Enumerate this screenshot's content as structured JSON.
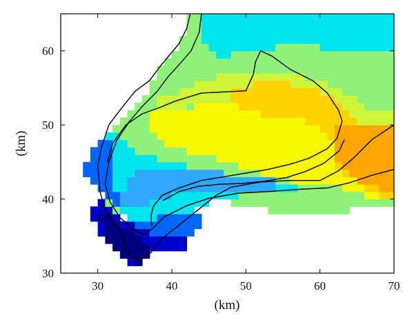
{
  "chart_data": {
    "type": "heatmap",
    "title": "",
    "xlabel": "(km)",
    "ylabel": "(km)",
    "xlim": [
      25,
      70
    ],
    "ylim": [
      30,
      65
    ],
    "xticks": [
      30,
      40,
      50,
      60,
      70
    ],
    "yticks": [
      30,
      40,
      50,
      60
    ],
    "grid": false,
    "colormap": [
      "#00007f",
      "#0000cc",
      "#0066ff",
      "#2fa8ff",
      "#00e5ee",
      "#45f0b8",
      "#8ef27a",
      "#d0f438",
      "#f7f700",
      "#ffd200",
      "#ffa500"
    ],
    "cell_size_km": 1,
    "value_note": "level index into colormap (0 = darkest blue, 10 = orange)",
    "regions": [
      {
        "level": 6,
        "outline": [
          [
            44,
            65
          ],
          [
            70,
            65
          ],
          [
            70,
            39.5
          ],
          [
            64,
            38.5
          ],
          [
            56,
            38
          ],
          [
            48,
            39.5
          ],
          [
            44,
            40
          ],
          [
            41,
            38
          ],
          [
            38,
            37
          ],
          [
            36,
            38.5
          ],
          [
            33,
            38
          ],
          [
            31,
            40
          ],
          [
            30.5,
            45
          ],
          [
            32.5,
            49.5
          ],
          [
            36,
            53
          ],
          [
            38,
            57
          ],
          [
            40.5,
            59.5
          ],
          [
            41.5,
            62
          ],
          [
            42.5,
            65
          ]
        ]
      },
      {
        "level": 4,
        "outline": [
          [
            44,
            65
          ],
          [
            70,
            65
          ],
          [
            70,
            60
          ],
          [
            62,
            60
          ],
          [
            58,
            61
          ],
          [
            54,
            60.5
          ],
          [
            50,
            60
          ],
          [
            46,
            59
          ],
          [
            44,
            62
          ]
        ]
      },
      {
        "level": 4,
        "outline": [
          [
            30,
            45
          ],
          [
            32,
            42
          ],
          [
            33,
            38
          ],
          [
            35,
            37
          ],
          [
            38,
            37
          ],
          [
            42,
            38
          ],
          [
            46,
            40
          ],
          [
            52,
            41
          ],
          [
            56,
            40.5
          ],
          [
            58,
            41
          ],
          [
            56,
            42
          ],
          [
            52,
            42.5
          ],
          [
            48,
            43
          ],
          [
            44,
            44
          ],
          [
            40,
            45
          ],
          [
            36,
            46
          ],
          [
            34,
            48
          ],
          [
            31.5,
            49
          ]
        ]
      },
      {
        "level": 3,
        "outline": [
          [
            33,
            39.5
          ],
          [
            34,
            42
          ],
          [
            36,
            44
          ],
          [
            40,
            44.5
          ],
          [
            45,
            44.5
          ],
          [
            47,
            43.5
          ],
          [
            50,
            43
          ],
          [
            54,
            42.5
          ],
          [
            54,
            41.5
          ],
          [
            50,
            41.5
          ],
          [
            46,
            41
          ],
          [
            42,
            41
          ],
          [
            38,
            40
          ],
          [
            35,
            38.5
          ]
        ]
      },
      {
        "level": 2,
        "outline": [
          [
            28,
            44
          ],
          [
            29.5,
            47
          ],
          [
            31,
            49
          ],
          [
            32,
            47
          ],
          [
            32,
            43
          ],
          [
            33,
            39
          ],
          [
            35,
            36
          ],
          [
            38,
            34
          ],
          [
            41,
            34
          ],
          [
            43,
            35
          ],
          [
            44,
            37
          ],
          [
            44,
            38
          ],
          [
            41,
            38
          ],
          [
            38,
            37.5
          ],
          [
            35,
            37
          ],
          [
            32,
            39
          ],
          [
            30,
            42
          ]
        ]
      },
      {
        "level": 1,
        "outline": [
          [
            29,
            38
          ],
          [
            30.5,
            35
          ],
          [
            32,
            33
          ],
          [
            34,
            31.5
          ],
          [
            36.5,
            31.5
          ],
          [
            38,
            33
          ],
          [
            40,
            33.5
          ],
          [
            42,
            33.5
          ],
          [
            42,
            35
          ],
          [
            40,
            35
          ],
          [
            38,
            35
          ],
          [
            36,
            36
          ],
          [
            34,
            37
          ],
          [
            32,
            38.5
          ],
          [
            30,
            40.5
          ]
        ]
      },
      {
        "level": 0,
        "outline": [
          [
            30,
            38.5
          ],
          [
            31,
            35
          ],
          [
            33,
            32
          ],
          [
            36,
            31.3
          ],
          [
            37.5,
            32.5
          ],
          [
            37,
            34
          ],
          [
            35.5,
            35
          ],
          [
            34,
            36
          ],
          [
            32.5,
            37
          ],
          [
            31,
            38
          ]
        ]
      },
      {
        "level": 8,
        "outline": [
          [
            37,
            52
          ],
          [
            42,
            52
          ],
          [
            46,
            54
          ],
          [
            52,
            54
          ],
          [
            58,
            53.5
          ],
          [
            63,
            52
          ],
          [
            66,
            49.5
          ],
          [
            70,
            49
          ],
          [
            70,
            40
          ],
          [
            66,
            40.5
          ],
          [
            64,
            41
          ],
          [
            62,
            42
          ],
          [
            58,
            42
          ],
          [
            54,
            43
          ],
          [
            50,
            44
          ],
          [
            46,
            45.5
          ],
          [
            44,
            46
          ],
          [
            40,
            47
          ],
          [
            37,
            49
          ]
        ]
      },
      {
        "level": 7,
        "outline": [
          [
            37,
            53
          ],
          [
            40,
            54
          ],
          [
            44,
            56
          ],
          [
            48,
            57
          ],
          [
            52,
            57.5
          ],
          [
            56,
            57
          ],
          [
            60,
            56
          ],
          [
            64,
            54
          ],
          [
            67,
            52
          ],
          [
            70,
            52
          ],
          [
            70,
            50
          ],
          [
            66,
            49
          ],
          [
            62,
            52
          ],
          [
            56,
            53
          ],
          [
            50,
            53.5
          ],
          [
            44,
            53
          ],
          [
            40,
            52
          ]
        ]
      },
      {
        "level": 9,
        "outline": [
          [
            48,
            55
          ],
          [
            54,
            56
          ],
          [
            58,
            55
          ],
          [
            62,
            54
          ],
          [
            64,
            52
          ],
          [
            66,
            50
          ],
          [
            70,
            50
          ],
          [
            70,
            40
          ],
          [
            67,
            41
          ],
          [
            64,
            43
          ],
          [
            62,
            45
          ],
          [
            62,
            48
          ],
          [
            60,
            50
          ],
          [
            56,
            51
          ],
          [
            52,
            51.5
          ],
          [
            49,
            52
          ]
        ]
      },
      {
        "level": 10,
        "outline": [
          [
            62,
            50
          ],
          [
            66,
            50
          ],
          [
            70,
            50
          ],
          [
            70,
            41
          ],
          [
            66,
            42
          ],
          [
            63,
            44
          ],
          [
            62,
            46
          ]
        ]
      }
    ],
    "contours": [
      [
        [
          42.5,
          65
        ],
        [
          42,
          63
        ],
        [
          41,
          61
        ],
        [
          38.5,
          58
        ],
        [
          37,
          56
        ],
        [
          35,
          54.5
        ],
        [
          33,
          52
        ],
        [
          31.5,
          50
        ],
        [
          30.5,
          47
        ],
        [
          30,
          44.5
        ],
        [
          30.3,
          41
        ],
        [
          31,
          38.5
        ],
        [
          32.5,
          36.5
        ],
        [
          33.5,
          35
        ],
        [
          33.8,
          33
        ],
        [
          34.8,
          32
        ],
        [
          36.3,
          32
        ],
        [
          37.2,
          32.8
        ],
        [
          38.5,
          34.5
        ],
        [
          41,
          36.5
        ],
        [
          43.5,
          38.5
        ],
        [
          46,
          40.5
        ],
        [
          48,
          41.6
        ],
        [
          52,
          42.3
        ],
        [
          56,
          42.5
        ],
        [
          60,
          42.5
        ],
        [
          62.5,
          43.8
        ],
        [
          64.5,
          45.5
        ],
        [
          67,
          48
        ],
        [
          70,
          50
        ]
      ],
      [
        [
          44,
          65
        ],
        [
          43.7,
          62.5
        ],
        [
          42.6,
          60
        ],
        [
          41.3,
          58.5
        ],
        [
          39.5,
          56.5
        ],
        [
          38,
          54.5
        ],
        [
          36,
          52.5
        ],
        [
          34.3,
          50.5
        ],
        [
          32.6,
          48
        ],
        [
          31.5,
          45
        ],
        [
          31,
          42
        ],
        [
          31.7,
          39.5
        ],
        [
          33,
          37.5
        ],
        [
          35,
          35.8
        ],
        [
          36.3,
          35.2
        ],
        [
          37.5,
          36.1
        ],
        [
          39,
          37.6
        ],
        [
          42,
          39.1
        ],
        [
          45,
          40.1
        ],
        [
          49,
          40.8
        ],
        [
          53,
          41
        ],
        [
          57,
          41.3
        ],
        [
          61,
          41.5
        ],
        [
          64,
          42.2
        ],
        [
          67,
          43.2
        ],
        [
          70,
          44
        ]
      ],
      [
        [
          31.3,
          45
        ],
        [
          32,
          47.5
        ],
        [
          33.8,
          50
        ],
        [
          36,
          51.5
        ],
        [
          38.5,
          52.4
        ],
        [
          40.4,
          53.2
        ],
        [
          44,
          54.3
        ],
        [
          50,
          54.6
        ],
        [
          51,
          56.8
        ],
        [
          51.3,
          58.5
        ],
        [
          52,
          60
        ],
        [
          53.5,
          59.3
        ],
        [
          56,
          57.5
        ],
        [
          59,
          56
        ],
        [
          61,
          54.3
        ],
        [
          62.5,
          52
        ],
        [
          63,
          50.5
        ],
        [
          62.3,
          48.2
        ],
        [
          61,
          46.8
        ],
        [
          58.5,
          45.5
        ],
        [
          56,
          44.7
        ],
        [
          53,
          44
        ],
        [
          50,
          43.5
        ],
        [
          47,
          43
        ],
        [
          44,
          42.5
        ],
        [
          41,
          41.5
        ],
        [
          38.7,
          40.5
        ],
        [
          37.5,
          39
        ],
        [
          37.2,
          37.8
        ],
        [
          37.3,
          36.3
        ]
      ],
      [
        [
          63.3,
          48
        ],
        [
          62.6,
          46.5
        ],
        [
          60.5,
          44.8
        ],
        [
          58,
          43.7
        ],
        [
          55.5,
          42.9
        ],
        [
          52.5,
          42.4
        ],
        [
          49.5,
          42.1
        ],
        [
          46.5,
          42
        ],
        [
          43.5,
          41.7
        ],
        [
          41,
          41
        ],
        [
          38.8,
          39.8
        ]
      ]
    ]
  }
}
